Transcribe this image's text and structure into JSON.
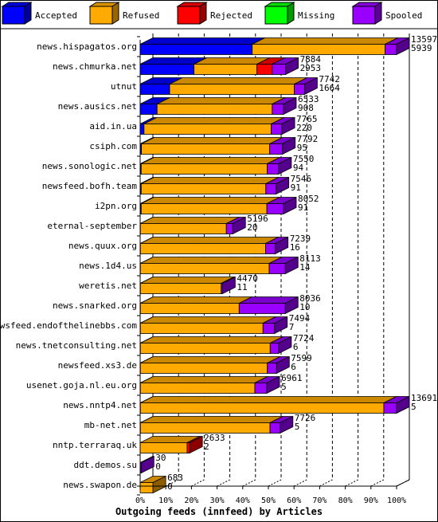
{
  "chart_data": {
    "type": "bar",
    "orientation": "horizontal",
    "stacked": true,
    "title": "",
    "xlabel": "Outgoing feeds (innfeed) by Articles",
    "ylabel": "",
    "xlim": [
      0,
      100
    ],
    "xticks": [
      "0%",
      "10%",
      "20%",
      "30%",
      "40%",
      "50%",
      "60%",
      "70%",
      "80%",
      "90%",
      "100%"
    ],
    "grid": true,
    "legend_position": "top",
    "series": [
      {
        "name": "Accepted",
        "color": "#0000ff",
        "values": [
          43.7,
          21.0,
          11.5,
          6.6,
          1.5,
          0.5,
          0.4,
          0.4,
          0.4,
          0.1,
          0.1,
          0.1,
          0.1,
          0.1,
          0.1,
          0.1,
          0.1,
          0.1,
          0.1,
          0.1,
          0,
          0,
          0
        ]
      },
      {
        "name": "Refused",
        "color": "#ffaa00",
        "values": [
          51.8,
          24.5,
          48.6,
          44.9,
          49.6,
          50.0,
          49.1,
          48.6,
          49.0,
          33.5,
          48.8,
          50.2,
          31.5,
          38.5,
          47.8,
          50.6,
          49.5,
          44.6,
          94.9,
          50.5,
          18.3,
          0,
          5.0
        ]
      },
      {
        "name": "Rejected",
        "color": "#ff0000",
        "values": [
          0,
          6.0,
          0,
          0,
          0,
          0,
          0,
          0,
          0,
          0,
          0,
          0,
          0,
          0,
          0,
          0,
          0,
          0,
          0,
          0,
          1.0,
          0,
          0
        ]
      },
      {
        "name": "Missing",
        "color": "#00ff00",
        "values": [
          0,
          0,
          0,
          0,
          0,
          0,
          0,
          0,
          0,
          0,
          0,
          0,
          0,
          0,
          0,
          0,
          0,
          0,
          0,
          0,
          0,
          0,
          0
        ]
      },
      {
        "name": "Spooled",
        "color": "#9900ff",
        "values": [
          4.5,
          5.2,
          4.0,
          4.4,
          4.2,
          5.0,
          4.5,
          4.0,
          6.5,
          2.5,
          3.8,
          6.3,
          0.5,
          18.0,
          4.5,
          3.3,
          3.6,
          4.7,
          5.0,
          4.0,
          0,
          0.4,
          0
        ]
      }
    ],
    "categories": [
      {
        "name": "news.hispagatos.org",
        "total": "13597",
        "count": "5939"
      },
      {
        "name": "news.chmurka.net",
        "total": "7884",
        "count": "2953"
      },
      {
        "name": "utnut",
        "total": "7742",
        "count": "1664"
      },
      {
        "name": "news.ausics.net",
        "total": "6533",
        "count": "908"
      },
      {
        "name": "aid.in.ua",
        "total": "7765",
        "count": "220"
      },
      {
        "name": "csiph.com",
        "total": "7792",
        "count": "95"
      },
      {
        "name": "news.sonologic.net",
        "total": "7550",
        "count": "94"
      },
      {
        "name": "newsfeed.bofh.team",
        "total": "7546",
        "count": "91"
      },
      {
        "name": "i2pn.org",
        "total": "8052",
        "count": "91"
      },
      {
        "name": "eternal-september",
        "total": "5196",
        "count": "20"
      },
      {
        "name": "news.quux.org",
        "total": "7239",
        "count": "16"
      },
      {
        "name": "news.1d4.us",
        "total": "8113",
        "count": "14"
      },
      {
        "name": "weretis.net",
        "total": "4470",
        "count": "11"
      },
      {
        "name": "news.snarked.org",
        "total": "8036",
        "count": "10"
      },
      {
        "name": "newsfeed.endofthelinebbs.com",
        "total": "7494",
        "count": "7"
      },
      {
        "name": "news.tnetconsulting.net",
        "total": "7724",
        "count": "6"
      },
      {
        "name": "newsfeed.xs3.de",
        "total": "7599",
        "count": "6"
      },
      {
        "name": "usenet.goja.nl.eu.org",
        "total": "6961",
        "count": "5"
      },
      {
        "name": "news.nntp4.net",
        "total": "13691",
        "count": "5"
      },
      {
        "name": "mb-net.net",
        "total": "7726",
        "count": "5"
      },
      {
        "name": "nntp.terraraq.uk",
        "total": "2633",
        "count": "2"
      },
      {
        "name": "ddt.demos.su",
        "total": "30",
        "count": "0"
      },
      {
        "name": "news.swapon.de",
        "total": "683",
        "count": "0"
      }
    ]
  }
}
